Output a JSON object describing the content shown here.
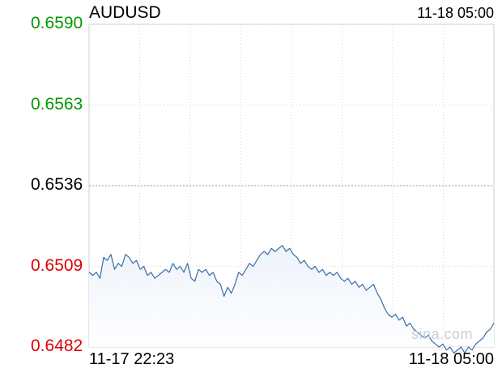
{
  "chart_data": {
    "type": "area",
    "title": "AUDUSD",
    "timestamp": "11-18 05:00",
    "x_start": "11-17 22:23",
    "x_end": "11-18 05:00",
    "prev_close": 0.6536,
    "ylim": [
      0.6482,
      0.659
    ],
    "y_ticks": [
      {
        "label": "0.6590",
        "value": 0.659,
        "color": "#009900"
      },
      {
        "label": "0.6563",
        "value": 0.6563,
        "color": "#009900"
      },
      {
        "label": "0.6536",
        "value": 0.6536,
        "color": "#000000"
      },
      {
        "label": "0.6509",
        "value": 0.6509,
        "color": "#dd0000"
      },
      {
        "label": "0.6482",
        "value": 0.6482,
        "color": "#dd0000"
      }
    ],
    "line_color": "#3a6ea5",
    "fill_color": "#eef3fb",
    "grid": true,
    "y": [
      0.6507,
      0.6506,
      0.6507,
      0.6505,
      0.6512,
      0.6511,
      0.6513,
      0.6508,
      0.651,
      0.6509,
      0.6513,
      0.6512,
      0.651,
      0.6511,
      0.6508,
      0.6509,
      0.6506,
      0.6507,
      0.6505,
      0.6506,
      0.6507,
      0.6508,
      0.6507,
      0.651,
      0.6508,
      0.6509,
      0.6507,
      0.651,
      0.6505,
      0.6504,
      0.6508,
      0.6507,
      0.6508,
      0.6506,
      0.6507,
      0.6504,
      0.6503,
      0.6499,
      0.6502,
      0.65,
      0.6503,
      0.6507,
      0.6506,
      0.6508,
      0.651,
      0.6509,
      0.6511,
      0.6513,
      0.6514,
      0.6513,
      0.6515,
      0.6514,
      0.6515,
      0.6516,
      0.6514,
      0.6515,
      0.6513,
      0.6512,
      0.651,
      0.6511,
      0.6509,
      0.6508,
      0.6509,
      0.6507,
      0.6508,
      0.6506,
      0.6507,
      0.6506,
      0.6507,
      0.6505,
      0.6504,
      0.6505,
      0.6503,
      0.6504,
      0.6502,
      0.6503,
      0.6501,
      0.6502,
      0.6503,
      0.65,
      0.6498,
      0.6495,
      0.6493,
      0.6492,
      0.6493,
      0.6491,
      0.6492,
      0.6489,
      0.649,
      0.6488,
      0.6487,
      0.6486,
      0.6485,
      0.6486,
      0.6484,
      0.6483,
      0.6482,
      0.6483,
      0.6481,
      0.6482,
      0.648,
      0.6481,
      0.6482,
      0.648,
      0.6482,
      0.6481,
      0.6483,
      0.6484,
      0.6485,
      0.6487,
      0.6488,
      0.649
    ]
  },
  "watermark": "sina.com"
}
